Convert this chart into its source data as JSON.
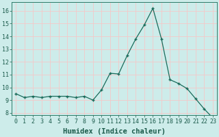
{
  "x": [
    0,
    1,
    2,
    3,
    4,
    5,
    6,
    7,
    8,
    9,
    10,
    11,
    12,
    13,
    14,
    15,
    16,
    17,
    18,
    19,
    20,
    21,
    22,
    23
  ],
  "y": [
    9.5,
    9.2,
    9.3,
    9.2,
    9.3,
    9.3,
    9.3,
    9.2,
    9.3,
    9.0,
    9.8,
    11.1,
    11.05,
    12.5,
    13.8,
    14.9,
    16.2,
    13.8,
    10.6,
    10.3,
    9.9,
    9.1,
    8.3,
    7.6
  ],
  "line_color": "#1a6b5a",
  "marker": "+",
  "marker_size": 3,
  "marker_linewidth": 1.0,
  "linewidth": 0.9,
  "xlabel": "Humidex (Indice chaleur)",
  "xlim": [
    -0.5,
    23.5
  ],
  "ylim": [
    7.8,
    16.7
  ],
  "yticks": [
    8,
    9,
    10,
    11,
    12,
    13,
    14,
    15,
    16
  ],
  "xticks": [
    0,
    1,
    2,
    3,
    4,
    5,
    6,
    7,
    8,
    9,
    10,
    11,
    12,
    13,
    14,
    15,
    16,
    17,
    18,
    19,
    20,
    21,
    22,
    23
  ],
  "bg_color": "#cdecea",
  "grid_color": "#f5c8c8",
  "axis_color": "#2a7a66",
  "tick_color": "#1a5a4a",
  "label_fontsize": 7.5,
  "tick_fontsize": 6.0,
  "xlabel_fontsize": 7.5,
  "xlabel_fontweight": "bold"
}
